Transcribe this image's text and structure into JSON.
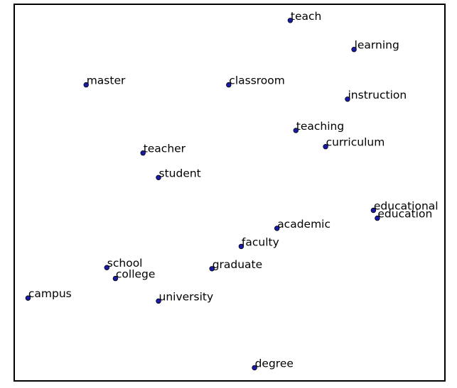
{
  "chart_data": {
    "type": "scatter",
    "title": "",
    "xlabel": "",
    "ylabel": "",
    "grid": false,
    "legend": "none",
    "axes_ticks": false,
    "marker_color": "#1a1aa8",
    "marker_edge_color": "#000000",
    "frame_color": "#000000",
    "xlim": [
      0,
      1
    ],
    "ylim": [
      0,
      1
    ],
    "points": [
      {
        "label": "teach",
        "x": 0.641,
        "y": 0.957
      },
      {
        "label": "learning",
        "x": 0.789,
        "y": 0.88
      },
      {
        "label": "master",
        "x": 0.167,
        "y": 0.786
      },
      {
        "label": "classroom",
        "x": 0.498,
        "y": 0.786
      },
      {
        "label": "instruction",
        "x": 0.774,
        "y": 0.748
      },
      {
        "label": "teaching",
        "x": 0.654,
        "y": 0.665
      },
      {
        "label": "curriculum",
        "x": 0.723,
        "y": 0.622
      },
      {
        "label": "teacher",
        "x": 0.299,
        "y": 0.605
      },
      {
        "label": "student",
        "x": 0.335,
        "y": 0.54
      },
      {
        "label": "educational",
        "x": 0.834,
        "y": 0.453
      },
      {
        "label": "education",
        "x": 0.843,
        "y": 0.432
      },
      {
        "label": "academic",
        "x": 0.61,
        "y": 0.405
      },
      {
        "label": "faculty",
        "x": 0.527,
        "y": 0.357
      },
      {
        "label": "school",
        "x": 0.215,
        "y": 0.301
      },
      {
        "label": "graduate",
        "x": 0.459,
        "y": 0.298
      },
      {
        "label": "college",
        "x": 0.235,
        "y": 0.272
      },
      {
        "label": "campus",
        "x": 0.032,
        "y": 0.22
      },
      {
        "label": "university",
        "x": 0.335,
        "y": 0.212
      },
      {
        "label": "degree",
        "x": 0.558,
        "y": 0.035
      }
    ]
  }
}
